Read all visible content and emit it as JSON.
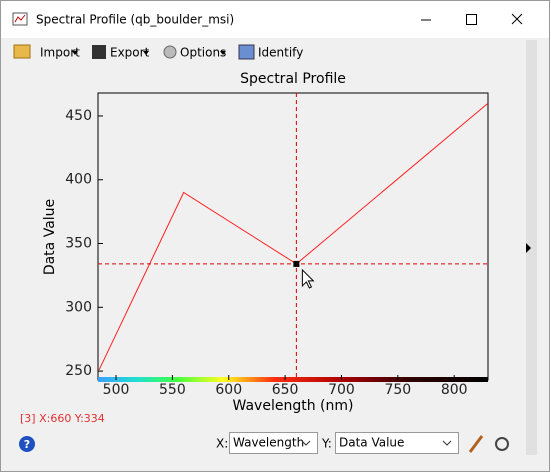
{
  "window": {
    "title": "Spectral Profile (qb_boulder_msi)",
    "toolbar": [
      "Import",
      "Export",
      "Options",
      "Identify"
    ],
    "status": "[3] X:660 Y:334",
    "x_select_label": "X:",
    "x_select": "Wavelength",
    "y_select_label": "Y:",
    "y_select": "Data Value"
  },
  "chart_data": {
    "type": "line",
    "title": "Spectral Profile",
    "x_label": "Wavelength (nm)",
    "y_label": "Data Value",
    "x": [
      485,
      560,
      660,
      830
    ],
    "values": [
      251,
      390,
      334,
      460
    ],
    "color": "#ff2020",
    "xlim": [
      484,
      830
    ],
    "ylim": [
      243,
      468
    ],
    "xticks": [
      500,
      550,
      600,
      650,
      700,
      750,
      800
    ],
    "yticks": [
      250,
      300,
      350,
      400,
      450
    ],
    "crosshair": {
      "x": 660,
      "y": 334
    }
  }
}
